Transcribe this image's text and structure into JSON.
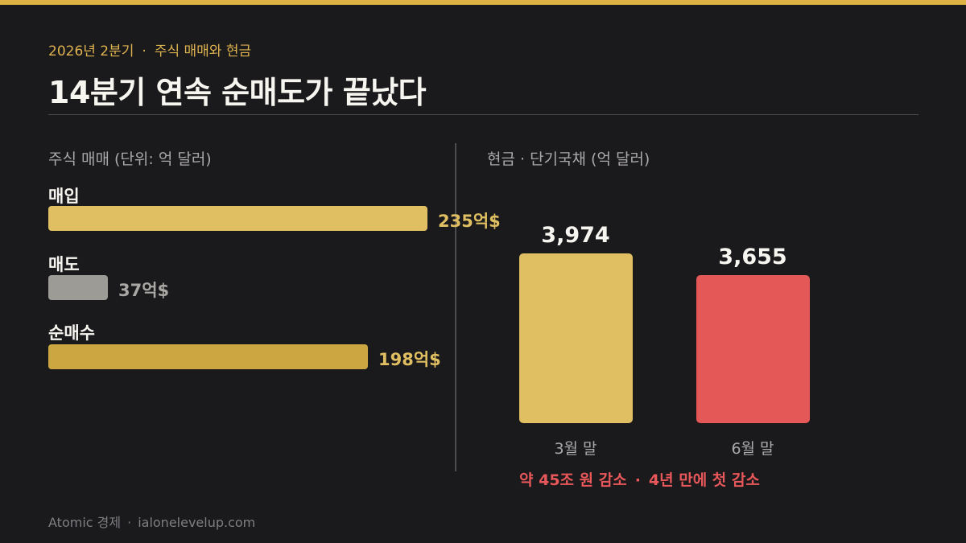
{
  "header": {
    "kicker_left": "2026년 2분기",
    "kicker_sep": "·",
    "kicker_right": "주식 매매와 현금",
    "title": "14분기 연속 순매도가 끝났다"
  },
  "chart_data": [
    {
      "type": "bar",
      "orientation": "horizontal",
      "title": "주식 매매 (단위: 억 달러)",
      "categories": [
        "매입",
        "매도",
        "순매수"
      ],
      "values": [
        235,
        37,
        198
      ],
      "value_labels": [
        "235억$",
        "37억$",
        "198억$"
      ],
      "colors": [
        "#e0bf62",
        "#9d9b96",
        "#cca640"
      ],
      "label_colors": [
        "#e0bf62",
        "#a9a8a4",
        "#e0bf62"
      ],
      "xlim": [
        0,
        235
      ]
    },
    {
      "type": "bar",
      "orientation": "vertical",
      "title": "현금 · 단기국채 (억 달러)",
      "categories": [
        "3월 말",
        "6월 말"
      ],
      "values": [
        3974,
        3655
      ],
      "value_labels": [
        "3,974",
        "3,655"
      ],
      "colors": [
        "#e0bf62",
        "#e45857"
      ],
      "annotation": {
        "left": "약 45조 원 감소",
        "sep": "·",
        "right": "4년 만에 첫 감소"
      }
    }
  ],
  "footer": {
    "brand": "Atomic 경제",
    "sep": "·",
    "site": "ialonelevelup.com"
  }
}
